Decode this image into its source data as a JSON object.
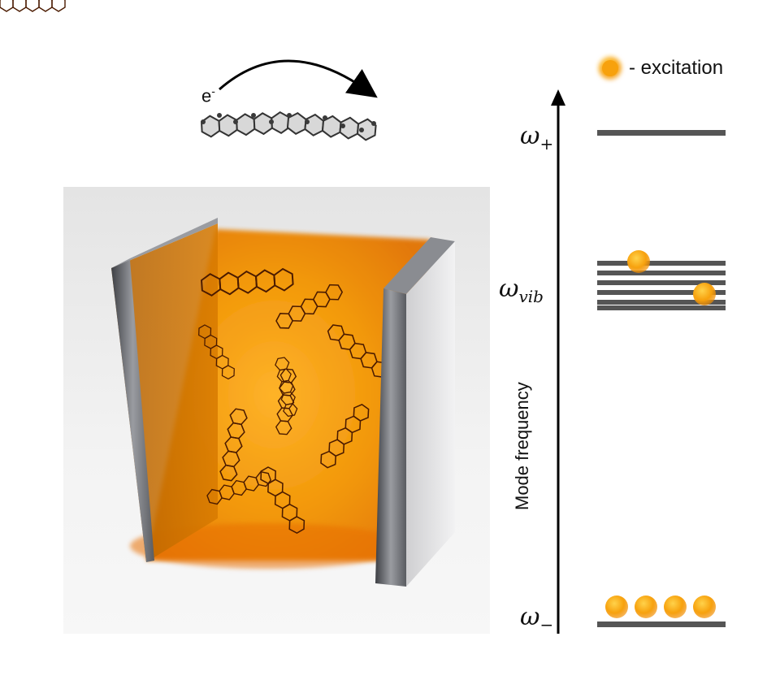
{
  "electron_label": {
    "base": "e",
    "sup": "-"
  },
  "legend": {
    "text": "- excitation"
  },
  "levels": {
    "upper": {
      "symbol": "ω",
      "sub": "+"
    },
    "vib": {
      "symbol": "ω",
      "sub": "vib"
    },
    "lower": {
      "symbol": "ω",
      "sub": "−"
    }
  },
  "axis": {
    "label": "Mode frequency"
  },
  "excitations": {
    "vib_level_count": 2,
    "lower_level_count": 4
  },
  "colors": {
    "cavity": "#f08a00",
    "mirror": "#6a6d73",
    "excitation": "#f5a20f",
    "line": "#555555"
  }
}
